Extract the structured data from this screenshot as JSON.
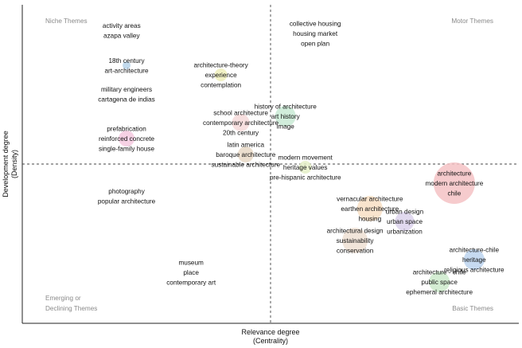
{
  "chart_data": {
    "type": "scatter",
    "title": "",
    "xlabel": [
      "Relevance degree",
      "(Centrality)"
    ],
    "ylabel": [
      "Development degree",
      "(Density)"
    ],
    "quadrants": {
      "top_left": "Niche Themes",
      "top_right": "Motor Themes",
      "bottom_left": [
        "Emerging or",
        "Declining Themes"
      ],
      "bottom_right": "Basic Themes"
    },
    "divider_style": "dashed",
    "grid": false,
    "xlim": [
      0,
      1
    ],
    "ylim": [
      0,
      1
    ],
    "x_divider": 0.5,
    "y_divider": 0.5,
    "clusters": [
      {
        "x": 0.2,
        "y": 0.92,
        "size": 0,
        "color": "#cccccc",
        "labels": [
          "activity areas",
          "azapa valley"
        ]
      },
      {
        "x": 0.21,
        "y": 0.81,
        "size": 5,
        "color": "#b7d3ea",
        "labels": [
          "18th century",
          "art-architecture"
        ]
      },
      {
        "x": 0.21,
        "y": 0.72,
        "size": 0,
        "color": "#cccccc",
        "labels": [
          "military engineers",
          "cartagena de indias"
        ]
      },
      {
        "x": 0.21,
        "y": 0.58,
        "size": 10,
        "color": "#f5c9df",
        "labels": [
          "prefabrication",
          "reinforced concrete",
          "single-family house"
        ]
      },
      {
        "x": 0.4,
        "y": 0.78,
        "size": 8,
        "color": "#eeeebb",
        "labels": [
          "architecture-theory",
          "experience",
          "contemplation"
        ]
      },
      {
        "x": 0.53,
        "y": 0.65,
        "size": 13,
        "color": "#c9ead5",
        "labels": [
          "history of architecture",
          "art history",
          "image"
        ]
      },
      {
        "x": 0.44,
        "y": 0.63,
        "size": 11,
        "color": "#f6d9d9",
        "labels": [
          "school architecture",
          "contemporary architecture",
          "20th century"
        ]
      },
      {
        "x": 0.45,
        "y": 0.53,
        "size": 10,
        "color": "#e8d8c5",
        "labels": [
          "latin america",
          "baroque architecture",
          "sustainable architecture"
        ]
      },
      {
        "x": 0.57,
        "y": 0.49,
        "size": 8,
        "color": "#e5f0c8",
        "labels": [
          "modern movement",
          "heritage values",
          "pre-hispanic architecture"
        ]
      },
      {
        "x": 0.59,
        "y": 0.91,
        "size": 0,
        "color": "#cccccc",
        "labels": [
          "collective housing",
          "housing market",
          "open plan"
        ]
      },
      {
        "x": 0.87,
        "y": 0.44,
        "size": 26,
        "color": "#f5c2c4",
        "labels": [
          "architecture",
          "modern architecture",
          "chile"
        ]
      },
      {
        "x": 0.21,
        "y": 0.4,
        "size": 0,
        "color": "#cccccc",
        "labels": [
          "photography",
          "popular architecture"
        ]
      },
      {
        "x": 0.34,
        "y": 0.16,
        "size": 0,
        "color": "#cccccc",
        "labels": [
          "museum",
          "place",
          "contemporary art"
        ]
      },
      {
        "x": 0.7,
        "y": 0.36,
        "size": 16,
        "color": "#f8dfc4",
        "labels": [
          "vernacular architecture",
          "earthen architecture",
          "housing"
        ]
      },
      {
        "x": 0.77,
        "y": 0.32,
        "size": 12,
        "color": "#dcd2ec",
        "labels": [
          "urban design",
          "urban space",
          "urbanization"
        ]
      },
      {
        "x": 0.67,
        "y": 0.26,
        "size": 16,
        "color": "#efe0d4",
        "labels": [
          "architectural design",
          "sustainability",
          "conservation"
        ]
      },
      {
        "x": 0.91,
        "y": 0.2,
        "size": 13,
        "color": "#bcd4ee",
        "labels": [
          "architecture-chile",
          "heritage",
          "religious architecture"
        ]
      },
      {
        "x": 0.84,
        "y": 0.13,
        "size": 13,
        "color": "#cdeacb",
        "labels": [
          "architecture - chile",
          "public space",
          "ephemeral architecture"
        ]
      }
    ]
  }
}
